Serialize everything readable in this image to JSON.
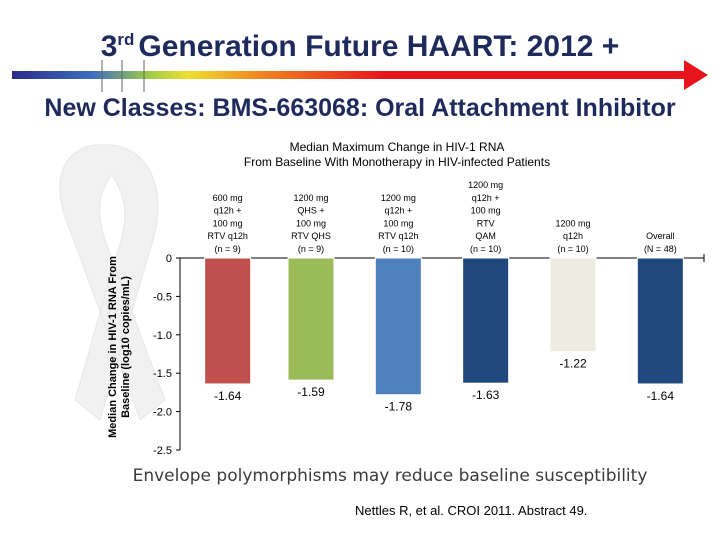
{
  "title": {
    "prefix": "3",
    "suffix": "rd",
    "text": "Generation Future HAART: 2012 +"
  },
  "subtitle": "New Classes: BMS-663068: Oral Attachment Inhibitor",
  "footnote": "Envelope polymorphisms may reduce baseline susceptibility",
  "citation": "Nettles R, et al. CROI 2011. Abstract 49.",
  "colors": {
    "title": "#1f2a5c",
    "arrow": "#e8141c"
  },
  "chart_data": {
    "type": "bar",
    "title": [
      "Median Maximum Change in HIV-1 RNA",
      "From Baseline With Monotherapy in HIV-infected Patients"
    ],
    "ylabel_lines": [
      "Median Change in HIV-1 RNA From",
      "Baseline (log10 copies/mL)"
    ],
    "ylim": [
      -2.5,
      0
    ],
    "yticks": [
      {
        "value": 0,
        "label": "0"
      },
      {
        "value": -0.5,
        "label": "-0.5"
      },
      {
        "value": -1.0,
        "label": "-1.0"
      },
      {
        "value": -1.5,
        "label": "-1.5"
      },
      {
        "value": -2.0,
        "label": "-2.0"
      },
      {
        "value": -2.5,
        "label": "-2.5"
      }
    ],
    "categories": [
      {
        "lines": [
          "600 mg",
          "q12h +",
          "100 mg",
          "RTV q12h",
          "(n = 9)"
        ],
        "bar_label": "-1.64"
      },
      {
        "lines": [
          "1200 mg",
          "QHS +",
          "100 mg",
          "RTV QHS",
          "(n = 9)"
        ],
        "bar_label": "-1.59"
      },
      {
        "lines": [
          "1200 mg",
          "q12h +",
          "100 mg",
          "RTV q12h",
          "(n = 10)"
        ],
        "bar_label": "-1.78"
      },
      {
        "lines": [
          "1200 mg",
          "q12h +",
          "100 mg",
          "RTV",
          "QAM",
          "(n = 10)"
        ],
        "bar_label": "-1.63"
      },
      {
        "lines": [
          "1200 mg",
          "q12h",
          "(n = 10)"
        ],
        "bar_label": "-1.22"
      },
      {
        "lines": [
          "Overall",
          "(N = 48)"
        ],
        "bar_label": "-1.64"
      }
    ],
    "values": [
      -1.64,
      -1.59,
      -1.78,
      -1.63,
      -1.22,
      -1.64
    ],
    "bar_colors": [
      "#c0504d",
      "#9bbb59",
      "#4f81bd",
      "#1f497d",
      "#eeece1",
      "#1f497d"
    ]
  }
}
